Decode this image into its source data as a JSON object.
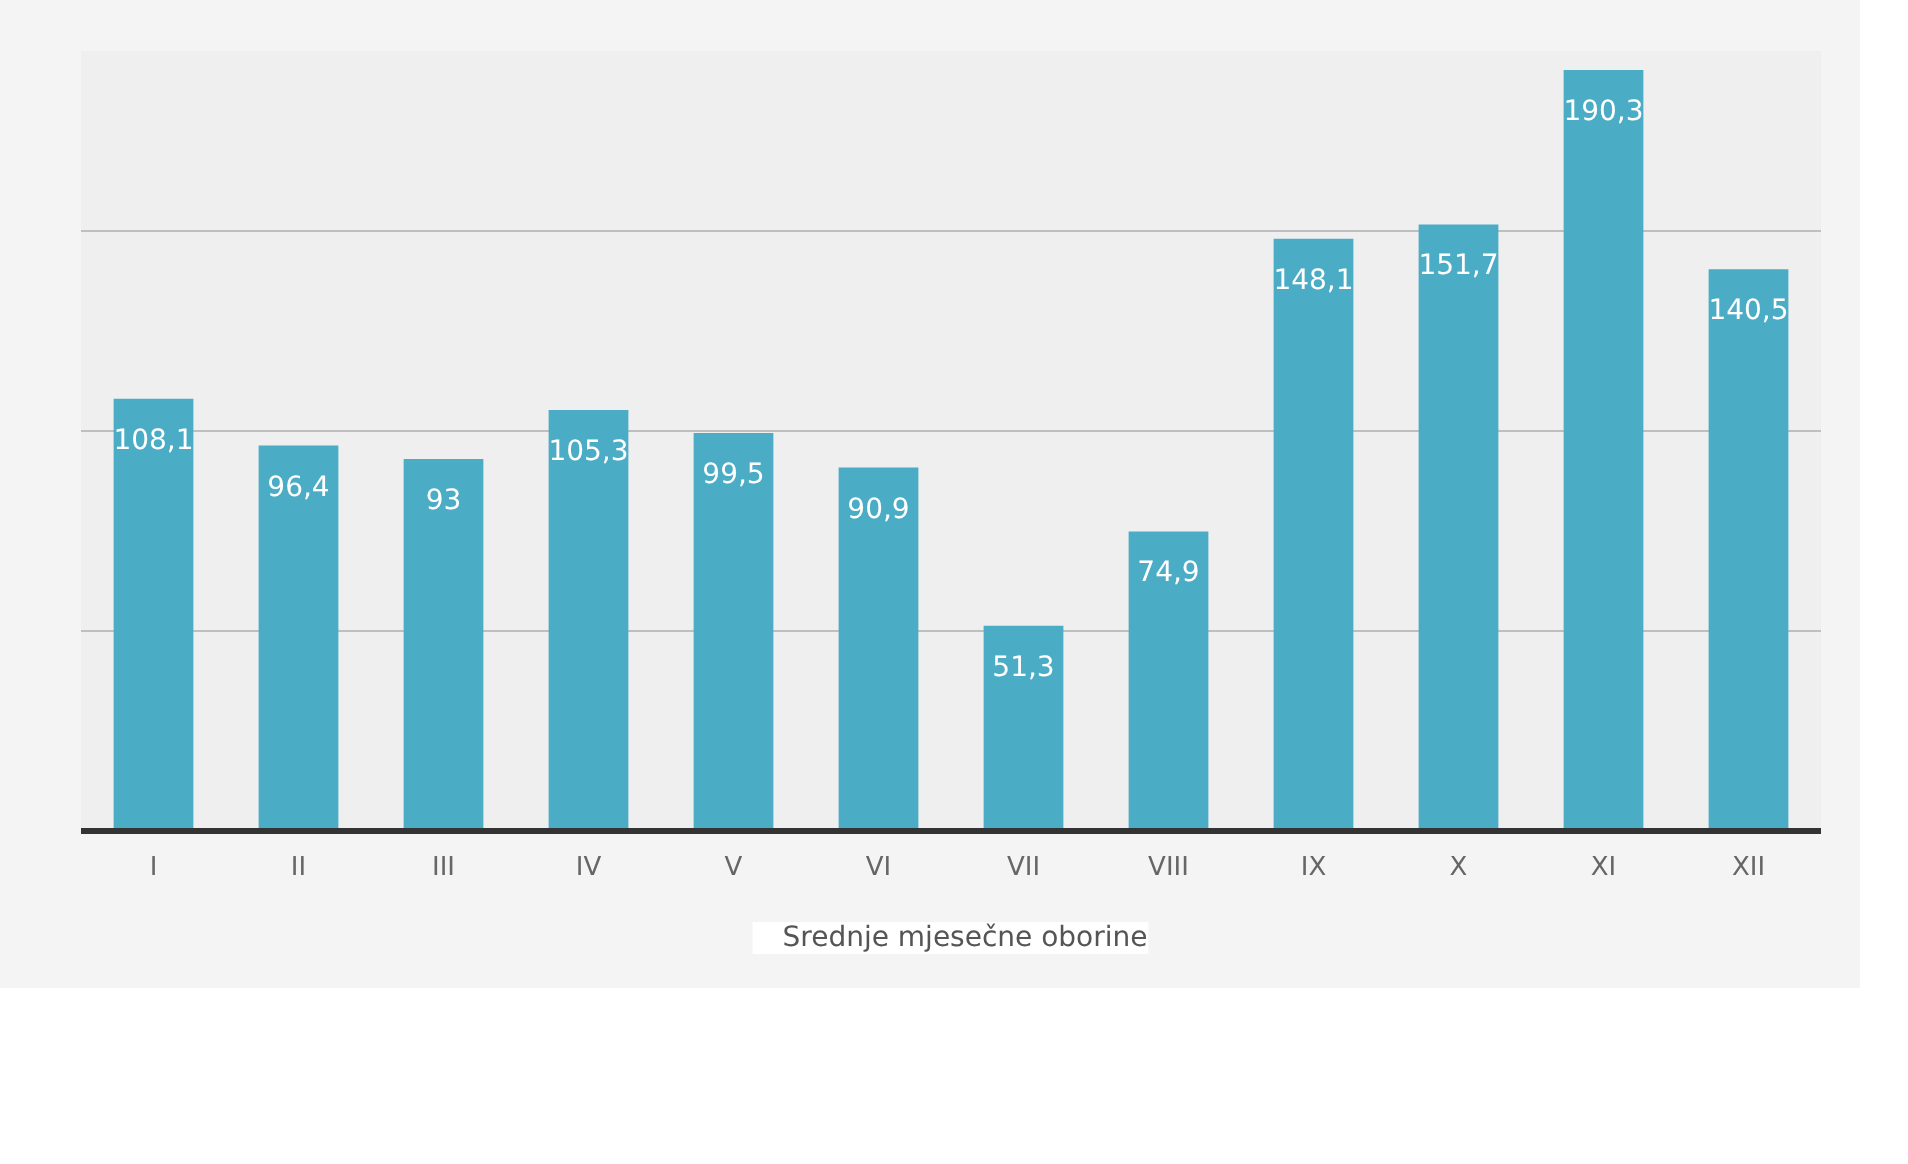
{
  "chart_data": {
    "type": "bar",
    "categories": [
      "I",
      "II",
      "III",
      "IV",
      "V",
      "VI",
      "VII",
      "VIII",
      "IX",
      "X",
      "XI",
      "XII"
    ],
    "series": [
      {
        "name": "Srednje mjesečne oborine",
        "color": "#4bacc6",
        "values": [
          108.1,
          96.4,
          93,
          105.3,
          99.5,
          90.9,
          51.3,
          74.9,
          148.1,
          151.7,
          190.3,
          140.5
        ],
        "value_labels": [
          "108,1",
          "96,4",
          "93",
          "105,3",
          "99,5",
          "90,9",
          "51,3",
          "74,9",
          "148,1",
          "151,7",
          "190,3",
          "140,5"
        ]
      }
    ],
    "grid": "y",
    "legend": "bottom",
    "tick_labels": "x"
  }
}
